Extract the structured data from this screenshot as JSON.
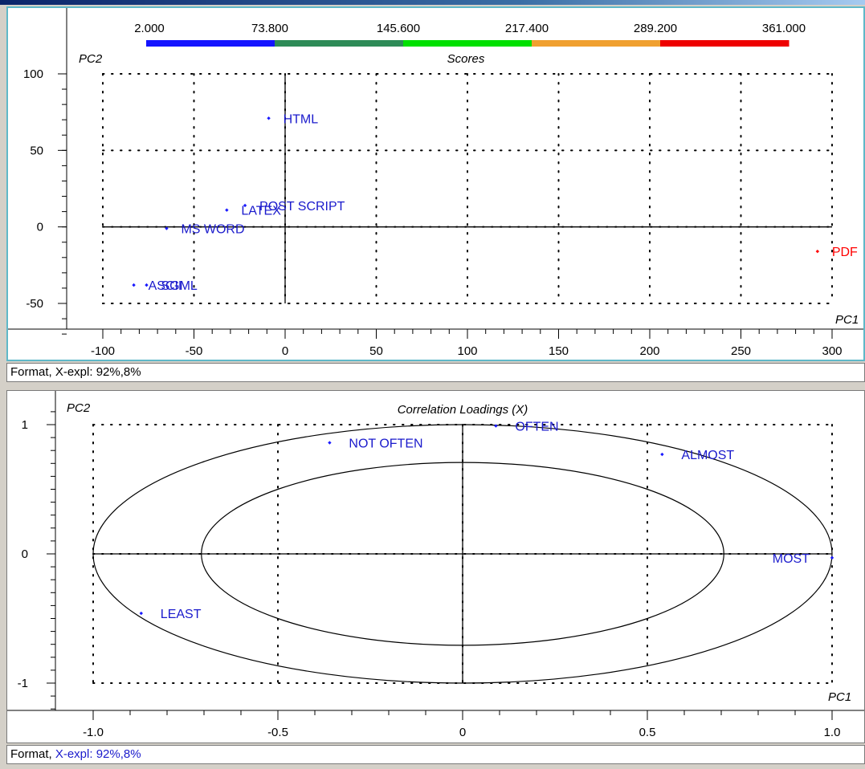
{
  "colors": {
    "point_blue": "#1a1aff",
    "point_red": "#ff0000",
    "label_blue": "#1a1acc",
    "axis": "#000000",
    "colorbar": [
      "#1414ff",
      "#2e8b57",
      "#00e000",
      "#f0a030",
      "#ee0000"
    ]
  },
  "status_top": {
    "prefix": "Format, X-expl: ",
    "value": "92%,8%"
  },
  "status_bottom": {
    "prefix": "Format, ",
    "value": "X-expl: 92%,8%"
  },
  "chart_data": [
    {
      "type": "scatter",
      "title": "Scores",
      "xlabel": "PC1",
      "ylabel": "PC2",
      "xlim": [
        -100,
        300
      ],
      "ylim": [
        -50,
        100
      ],
      "xticks": [
        -100,
        -50,
        0,
        50,
        100,
        150,
        200,
        250,
        300
      ],
      "yticks": [
        -50,
        0,
        50,
        100
      ],
      "colorbar": {
        "ticks": [
          "2.000",
          "73.800",
          "145.600",
          "217.400",
          "289.200",
          "361.000"
        ]
      },
      "points": [
        {
          "label": "HTML",
          "x": -9,
          "y": 71,
          "color": "blue"
        },
        {
          "label": "POST SCRIPT",
          "x": -22,
          "y": 14,
          "color": "blue"
        },
        {
          "label": "LATEX",
          "x": -32,
          "y": 11,
          "color": "blue"
        },
        {
          "label": "MS WORD",
          "x": -65,
          "y": -1,
          "color": "blue"
        },
        {
          "label": "SGML",
          "x": -76,
          "y": -38,
          "color": "blue"
        },
        {
          "label": "ASCII",
          "x": -83,
          "y": -38,
          "color": "blue"
        },
        {
          "label": "PDF",
          "x": 292,
          "y": -16,
          "color": "red"
        }
      ]
    },
    {
      "type": "scatter",
      "title": "Correlation Loadings (X)",
      "xlabel": "PC1",
      "ylabel": "PC2",
      "xlim": [
        -1,
        1
      ],
      "ylim": [
        -1,
        1
      ],
      "xticks": [
        "-1.0",
        "-0.5",
        "0",
        "0.5",
        "1.0"
      ],
      "yticks": [
        "-1",
        "0",
        "1"
      ],
      "ellipses": [
        1.0,
        0.7071
      ],
      "points": [
        {
          "label": "OFTEN",
          "x": 0.09,
          "y": 0.99
        },
        {
          "label": "NOT OFTEN",
          "x": -0.36,
          "y": 0.86
        },
        {
          "label": "ALMOST",
          "x": 0.54,
          "y": 0.77
        },
        {
          "label": "MOST",
          "x": 1.0,
          "y": -0.03
        },
        {
          "label": "LEAST",
          "x": -0.87,
          "y": -0.46
        }
      ]
    }
  ]
}
